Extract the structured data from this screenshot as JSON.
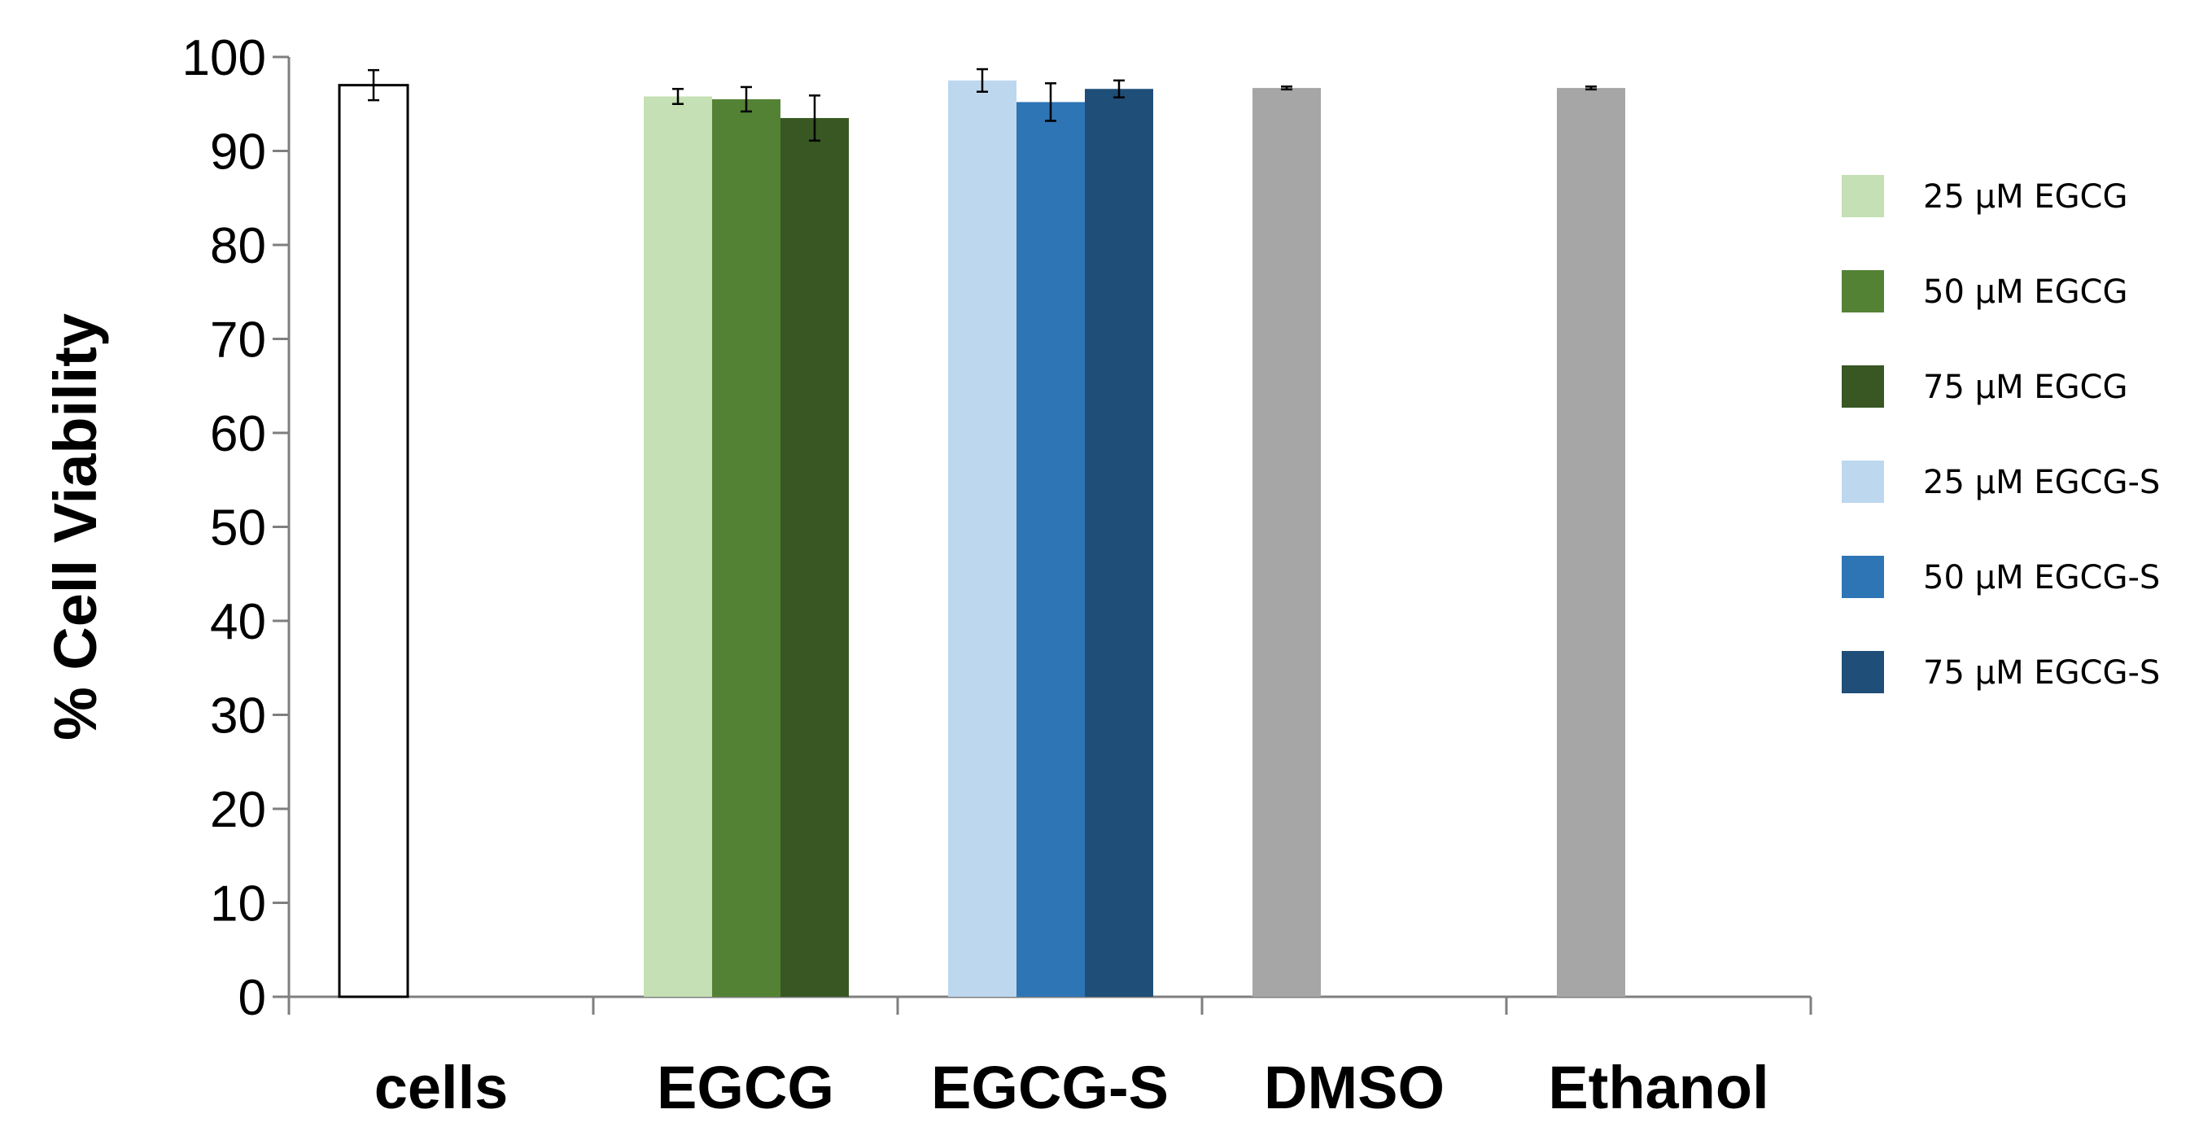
{
  "chart_data": {
    "type": "bar",
    "ylabel": "% Cell Viability",
    "xlabel": "",
    "ylim": [
      0,
      100
    ],
    "yticks": [
      0,
      10,
      20,
      30,
      40,
      50,
      60,
      70,
      80,
      90,
      100
    ],
    "grid": false,
    "legend_position": "right",
    "categories": [
      "cells",
      "EGCG",
      "EGCG-S",
      "DMSO",
      "Ethanol"
    ],
    "series": [
      {
        "category": "cells",
        "value": 97.0,
        "error": 1.6,
        "color": "#ffffff",
        "stroke": "#000000"
      },
      {
        "category": "EGCG",
        "name": "25 µM EGCG",
        "value": 95.8,
        "error": 0.8,
        "color": "#c5e0b4"
      },
      {
        "category": "EGCG",
        "name": "50 µM EGCG",
        "value": 95.5,
        "error": 1.3,
        "color": "#548235"
      },
      {
        "category": "EGCG",
        "name": "75 µM EGCG",
        "value": 93.5,
        "error": 2.4,
        "color": "#385723"
      },
      {
        "category": "EGCG-S",
        "name": "25 µM EGCG-S",
        "value": 97.5,
        "error": 1.2,
        "color": "#bdd7ee"
      },
      {
        "category": "EGCG-S",
        "name": "50 µM EGCG-S",
        "value": 95.2,
        "error": 2.0,
        "color": "#2e75b6"
      },
      {
        "category": "EGCG-S",
        "name": "75 µM EGCG-S",
        "value": 96.6,
        "error": 0.9,
        "color": "#1f4e79"
      },
      {
        "category": "DMSO",
        "value": 96.7,
        "error": 0.15,
        "color": "#a6a6a6"
      },
      {
        "category": "Ethanol",
        "value": 96.7,
        "error": 0.15,
        "color": "#a6a6a6"
      }
    ],
    "legend": [
      {
        "label": "25 µM EGCG",
        "color": "#c5e0b4"
      },
      {
        "label": "50 µM EGCG",
        "color": "#548235"
      },
      {
        "label": "75 µM EGCG",
        "color": "#385723"
      },
      {
        "label": "25 µM EGCG-S",
        "color": "#bdd7ee"
      },
      {
        "label": "50 µM EGCG-S",
        "color": "#2e75b6"
      },
      {
        "label": "75 µM EGCG-S",
        "color": "#1f4e79"
      }
    ]
  }
}
